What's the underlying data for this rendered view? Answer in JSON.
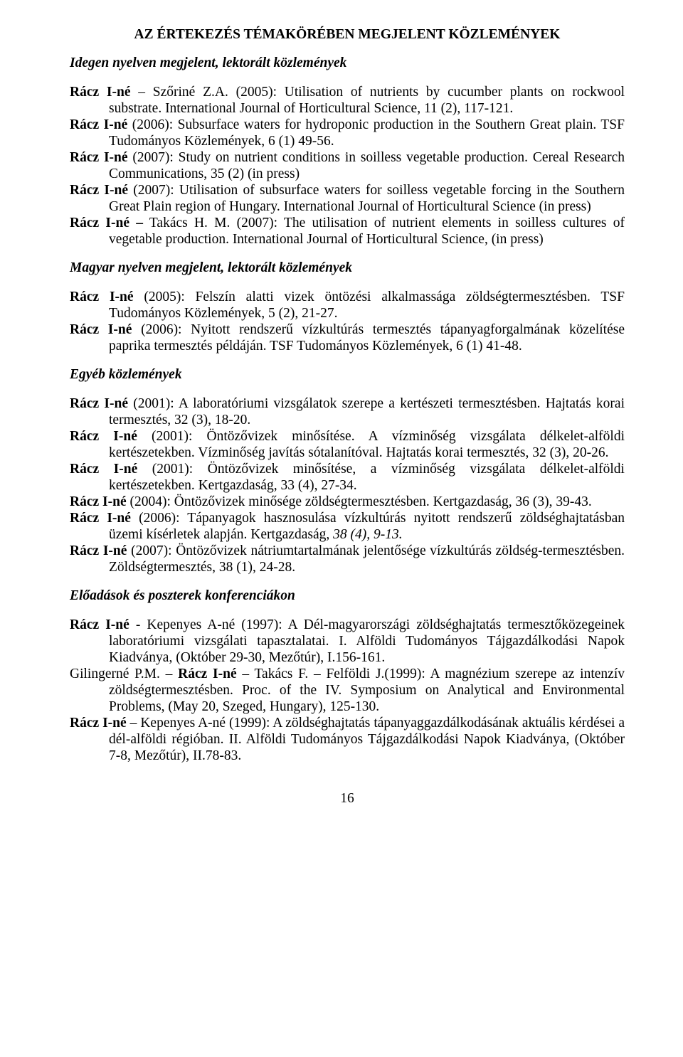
{
  "title": "AZ ÉRTEKEZÉS TÉMAKÖRÉBEN MEGJELENT KÖZLEMÉNYEK",
  "section1": {
    "heading": "Idegen nyelven megjelent, lektorált közlemények",
    "r1_a": "Rácz I-né",
    "r1_b": " – Szőriné Z.A. (2005): Utilisation of nutrients by cucumber plants on rockwool substrate. International Journal of Horticultural Science, 11 (2),  117-121.",
    "r2_a": "Rácz I-né",
    "r2_b": " (2006): Subsurface waters for hydroponic production in the Southern Great plain. TSF Tudományos Közlemények, 6 (1) 49-56.",
    "r3_a": "Rácz I-né",
    "r3_b": " (2007): Study on nutrient conditions in soilless vegetable production. Cereal Research Communications, 35 (2) (in press)",
    "r4_a": "Rácz I-né",
    "r4_b": " (2007): Utilisation of subsurface waters for soilless vegetable forcing in the Southern Great Plain region of Hungary. International Journal of Horticultural Science (in press)",
    "r5_a": "Rácz I-né –",
    "r5_b": " Takács H. M. (2007): The utilisation of nutrient elements in soilless cultures of vegetable production. International Journal of Horticultural Science, (in press)"
  },
  "section2": {
    "heading": "Magyar nyelven megjelent, lektorált közlemények",
    "r1_a": "Rácz I-né",
    "r1_b": " (2005): Felszín alatti vizek öntözési alkalmassága zöldségtermesztésben. TSF Tudományos Közlemények, 5 (2), 21-27.",
    "r2_a": "Rácz I-né",
    "r2_b": " (2006): Nyitott rendszerű vízkultúrás termesztés tápanyagforgalmának közelítése paprika termesztés példáján. TSF Tudományos Közlemények, 6 (1) 41-48."
  },
  "section3": {
    "heading": "Egyéb közlemények",
    "r1_a": "Rácz I-né",
    "r1_b": " (2001): A laboratóriumi vizsgálatok szerepe a kertészeti termesztésben. Hajtatás korai termesztés, 32 (3), 18-20.",
    "r2_a": "Rácz I-né",
    "r2_b": " (2001): Öntözővizek minősítése. A vízminőség vizsgálata délkelet-alföldi kertészetekben. Vízminőség javítás sótalanítóval. Hajtatás korai termesztés, 32 (3), 20-26.",
    "r3_a": "Rácz I-né",
    "r3_b": " (2001): Öntözővizek minősítése, a vízminőség vizsgálata délkelet-alföldi kertészetekben. Kertgazdaság, 33 (4), 27-34.",
    "r4_a": "Rácz I-né",
    "r4_b": " (2004): Öntözővizek minősége zöldségtermesztésben. Kertgazdaság, 36 (3), 39-43.",
    "r5_a": "Rácz I-né",
    "r5_b": " (2006): Tápanyagok hasznosulása vízkultúrás nyitott rendszerű zöldséghajtatásban üzemi kísérletek alapján. Kertgazdaság",
    "r5_c": ", 38 (4), 9-13.",
    "r6_a": "Rácz I-né",
    "r6_b": " (2007): Öntözővizek nátriumtartalmának jelentősége vízkultúrás zöldség-termesztésben. Zöldségtermesztés, 38 (1), 24-28."
  },
  "section4": {
    "heading": "Előadások és poszterek konferenciákon",
    "r1_a": "Rácz I-né",
    "r1_b": " - Kepenyes A-né (1997): A Dél-magyarországi zöldséghajtatás termesztőközegeinek laboratóriumi vizsgálati tapasztalatai. I. Alföldi Tudományos Tájgazdálkodási Napok Kiadványa, (Október 29-30, Mezőtúr),  I.156-161.",
    "r2_a": "Gilingerné P.M. – ",
    "r2_b": "Rácz I-né",
    "r2_c": " – Takács F. – Felföldi J.(1999): A magnézium szerepe az intenzív zöldségtermesztésben. Proc. of the IV. Symposium on Analytical and Environmental Problems, (May 20, Szeged, Hungary), 125-130.",
    "r3_a": "Rácz I-né",
    "r3_b": " – Kepenyes A-né (1999): A zöldséghajtatás tápanyaggazdálkodásának aktuális kérdései a dél-alföldi régióban. II. Alföldi Tudományos Tájgazdálkodási Napok Kiadványa, (Október 7-8, Mezőtúr), II.78-83."
  },
  "pagenum": "16"
}
